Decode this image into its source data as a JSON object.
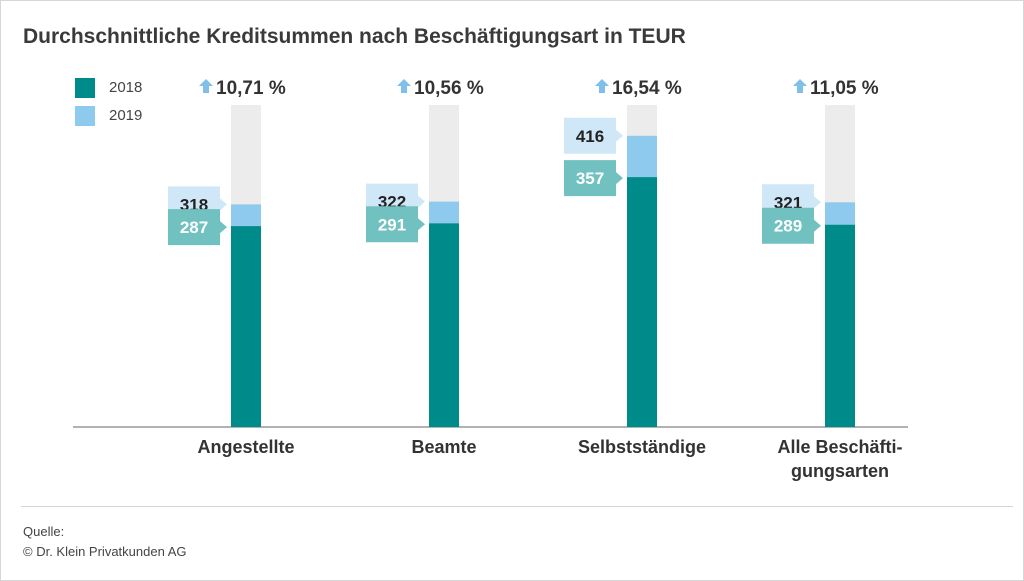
{
  "chart_data": {
    "type": "bar",
    "title": "Durchschnittliche Kreditsummen nach Beschäftigungsart in TEUR",
    "categories": [
      [
        "Angestellte"
      ],
      [
        "Beamte"
      ],
      [
        "Selbstständige"
      ],
      [
        "Alle Beschäfti-",
        "gungsarten"
      ]
    ],
    "series": [
      {
        "name": "2018",
        "color": "#008b8b",
        "label_color": "#72c1c1",
        "values": [
          287,
          291,
          357,
          289
        ]
      },
      {
        "name": "2019",
        "color": "#8ec9ee",
        "label_color": "#cfe7f7",
        "values": [
          318,
          322,
          416,
          321
        ]
      }
    ],
    "changes": [
      "10,71 %",
      "10,56 %",
      "16,54 %",
      "11,05 %"
    ],
    "change_icon": "arrow-up-icon",
    "ylim": [
      0,
      460
    ],
    "background_bar_color": "#ececec",
    "grid": false,
    "legend": "top-left"
  },
  "legend": [
    {
      "label": "2018",
      "color": "#008b8b"
    },
    {
      "label": "2019",
      "color": "#8ec9ee"
    }
  ],
  "footer": {
    "source_label": "Quelle:",
    "source_text": "© Dr. Klein Privatkunden AG"
  }
}
